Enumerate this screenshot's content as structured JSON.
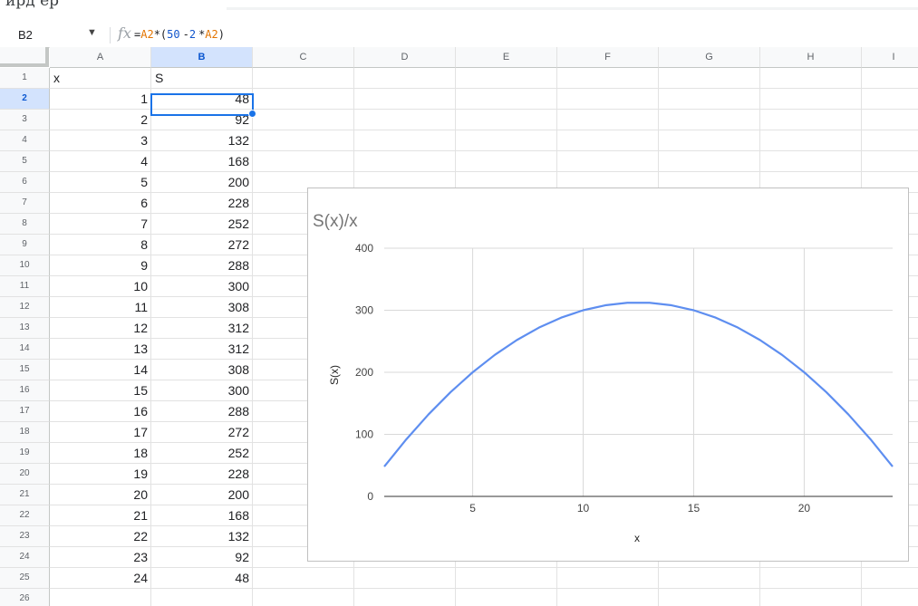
{
  "top_strip": {
    "text": "ирд ер"
  },
  "formula_bar": {
    "name_box": "B2",
    "fx_label": "fx",
    "formula_parts": [
      "=",
      "A2",
      "*(",
      "50",
      "-",
      "2",
      "*",
      "A2",
      ")"
    ]
  },
  "sheet": {
    "selected_cell": "B2",
    "columns": [
      "A",
      "B",
      "C",
      "D",
      "E",
      "F",
      "G",
      "H",
      "I"
    ],
    "row_numbers": [
      "1",
      "2",
      "3",
      "4",
      "5",
      "6",
      "7",
      "8",
      "9",
      "10",
      "11",
      "12",
      "13",
      "14",
      "15",
      "16",
      "17",
      "18",
      "19",
      "20",
      "21",
      "22",
      "23",
      "24",
      "25",
      "26"
    ],
    "header_row": {
      "A": "x",
      "B": "S"
    },
    "data_rows": [
      {
        "A": "1",
        "B": "48"
      },
      {
        "A": "2",
        "B": "92"
      },
      {
        "A": "3",
        "B": "132"
      },
      {
        "A": "4",
        "B": "168"
      },
      {
        "A": "5",
        "B": "200"
      },
      {
        "A": "6",
        "B": "228"
      },
      {
        "A": "7",
        "B": "252"
      },
      {
        "A": "8",
        "B": "272"
      },
      {
        "A": "9",
        "B": "288"
      },
      {
        "A": "10",
        "B": "300"
      },
      {
        "A": "11",
        "B": "308"
      },
      {
        "A": "12",
        "B": "312"
      },
      {
        "A": "13",
        "B": "312"
      },
      {
        "A": "14",
        "B": "308"
      },
      {
        "A": "15",
        "B": "300"
      },
      {
        "A": "16",
        "B": "288"
      },
      {
        "A": "17",
        "B": "272"
      },
      {
        "A": "18",
        "B": "252"
      },
      {
        "A": "19",
        "B": "228"
      },
      {
        "A": "20",
        "B": "200"
      },
      {
        "A": "21",
        "B": "168"
      },
      {
        "A": "22",
        "B": "132"
      },
      {
        "A": "23",
        "B": "92"
      },
      {
        "A": "24",
        "B": "48"
      }
    ]
  },
  "colors": {
    "accent": "#1a73e8",
    "line": "#5e8ef0",
    "grid": "#d9d9d9"
  },
  "chart_data": {
    "type": "line",
    "title": "S(x)/x",
    "xlabel": "x",
    "ylabel": "S(x)",
    "x": [
      1,
      2,
      3,
      4,
      5,
      6,
      7,
      8,
      9,
      10,
      11,
      12,
      13,
      14,
      15,
      16,
      17,
      18,
      19,
      20,
      21,
      22,
      23,
      24
    ],
    "series": [
      {
        "values": [
          48,
          92,
          132,
          168,
          200,
          228,
          252,
          272,
          288,
          300,
          308,
          312,
          312,
          308,
          300,
          288,
          272,
          252,
          228,
          200,
          168,
          132,
          92,
          48
        ]
      }
    ],
    "xlim": [
      1,
      24
    ],
    "ylim": [
      0,
      400
    ],
    "xticks": [
      "5",
      "10",
      "15",
      "20"
    ],
    "yticks": [
      "0",
      "100",
      "200",
      "300",
      "400"
    ],
    "grid": true,
    "legend": "none"
  }
}
